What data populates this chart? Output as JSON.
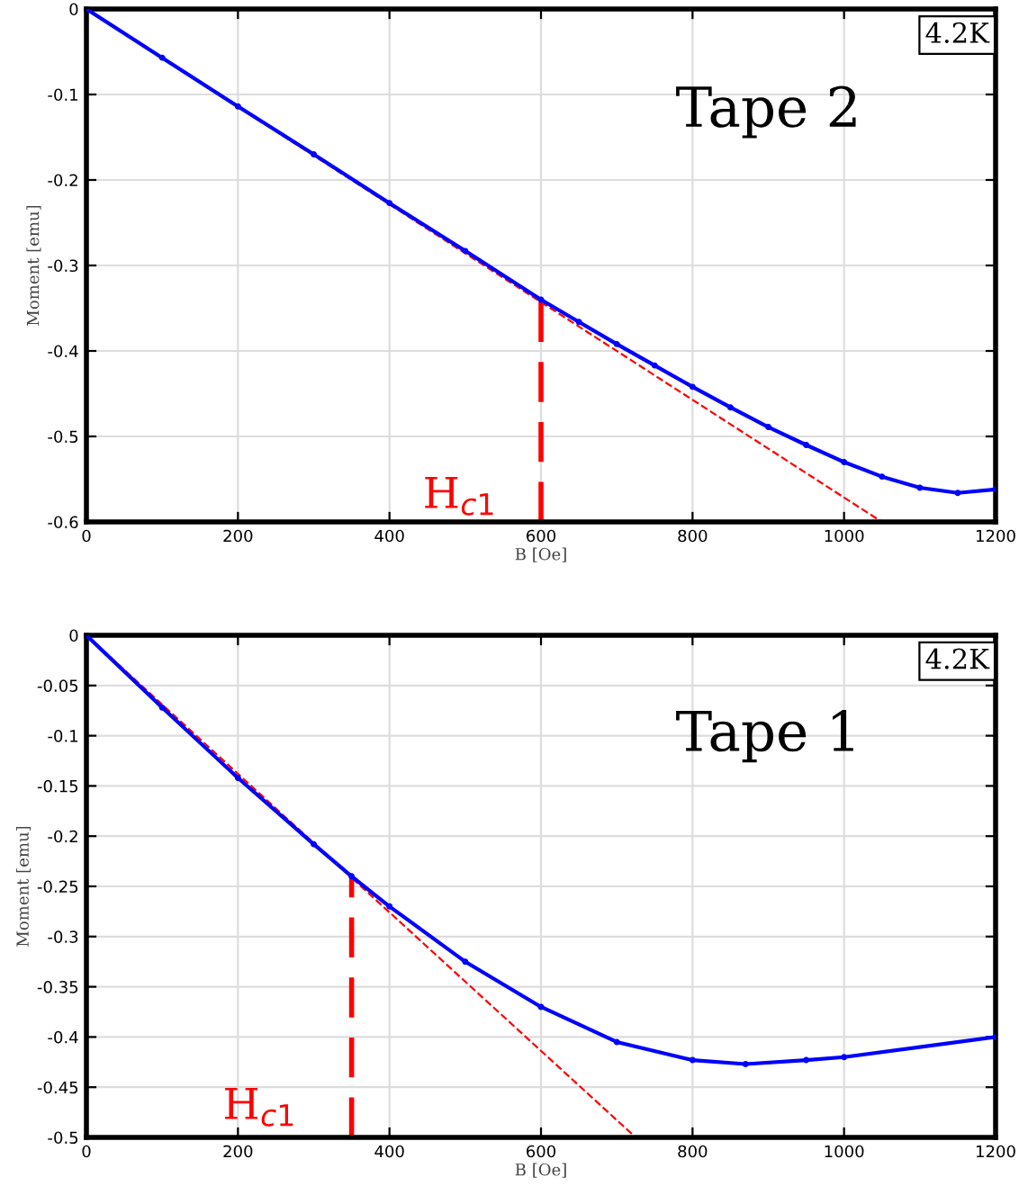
{
  "chart_data": [
    {
      "type": "line",
      "xlabel": "B [Oe]",
      "ylabel": "Moment [emu]",
      "xlim": [
        0,
        1200
      ],
      "ylim": [
        -0.6,
        0
      ],
      "xticks": [
        0,
        200,
        400,
        600,
        800,
        1000,
        1200
      ],
      "yticks": [
        -0.6,
        -0.5,
        -0.4,
        -0.3,
        -0.2,
        -0.1,
        0
      ],
      "grid": true,
      "legend": false,
      "annotations": [
        "H$_{c1}$",
        "Tape 2",
        "4.2K"
      ],
      "series": [
        {
          "color": "#ff0000",
          "x": [
            0,
            1050
          ],
          "values": [
            0,
            -0.6
          ],
          "line_style": "dashed",
          "marker": "none"
        },
        {
          "color": "#ff0000",
          "x": [
            600,
            600
          ],
          "values": [
            -0.6,
            -0.34
          ],
          "line_style": "dashed",
          "marker": "none"
        },
        {
          "color": "#0000ff",
          "x": [
            0,
            100,
            200,
            300,
            400,
            500,
            600,
            650,
            700,
            750,
            800,
            850,
            900,
            950,
            1000,
            1050,
            1100,
            1150,
            1200
          ],
          "values": [
            0,
            -0.057,
            -0.114,
            -0.17,
            -0.227,
            -0.283,
            -0.34,
            -0.366,
            -0.392,
            -0.417,
            -0.442,
            -0.466,
            -0.489,
            -0.51,
            -0.53,
            -0.547,
            -0.56,
            -0.566,
            -0.562
          ],
          "line_style": "solid",
          "marker": "circle"
        }
      ]
    },
    {
      "type": "line",
      "xlabel": "B [Oe]",
      "ylabel": "Moment [emu]",
      "xlim": [
        0,
        1200
      ],
      "ylim": [
        -0.5,
        0
      ],
      "xticks": [
        0,
        200,
        400,
        600,
        800,
        1000,
        1200
      ],
      "yticks": [
        -0.5,
        -0.45,
        -0.4,
        -0.35,
        -0.3,
        -0.25,
        -0.2,
        -0.15,
        -0.1,
        -0.05,
        0
      ],
      "grid": true,
      "legend": false,
      "annotations": [
        "H$_{c1}$",
        "Tape 1",
        "4.2K"
      ],
      "series": [
        {
          "color": "#ff0000",
          "x": [
            0,
            725
          ],
          "values": [
            0,
            -0.5
          ],
          "line_style": "dashed",
          "marker": "none"
        },
        {
          "color": "#ff0000",
          "x": [
            350,
            350
          ],
          "values": [
            -0.5,
            -0.24
          ],
          "line_style": "dashed",
          "marker": "none"
        },
        {
          "color": "#0000ff",
          "x": [
            0,
            100,
            200,
            300,
            350,
            400,
            500,
            600,
            700,
            800,
            870,
            950,
            1000,
            1200
          ],
          "values": [
            0,
            -0.072,
            -0.142,
            -0.208,
            -0.24,
            -0.27,
            -0.325,
            -0.37,
            -0.405,
            -0.423,
            -0.427,
            -0.423,
            -0.42,
            -0.4
          ],
          "line_style": "solid",
          "marker": "circle"
        }
      ]
    }
  ]
}
